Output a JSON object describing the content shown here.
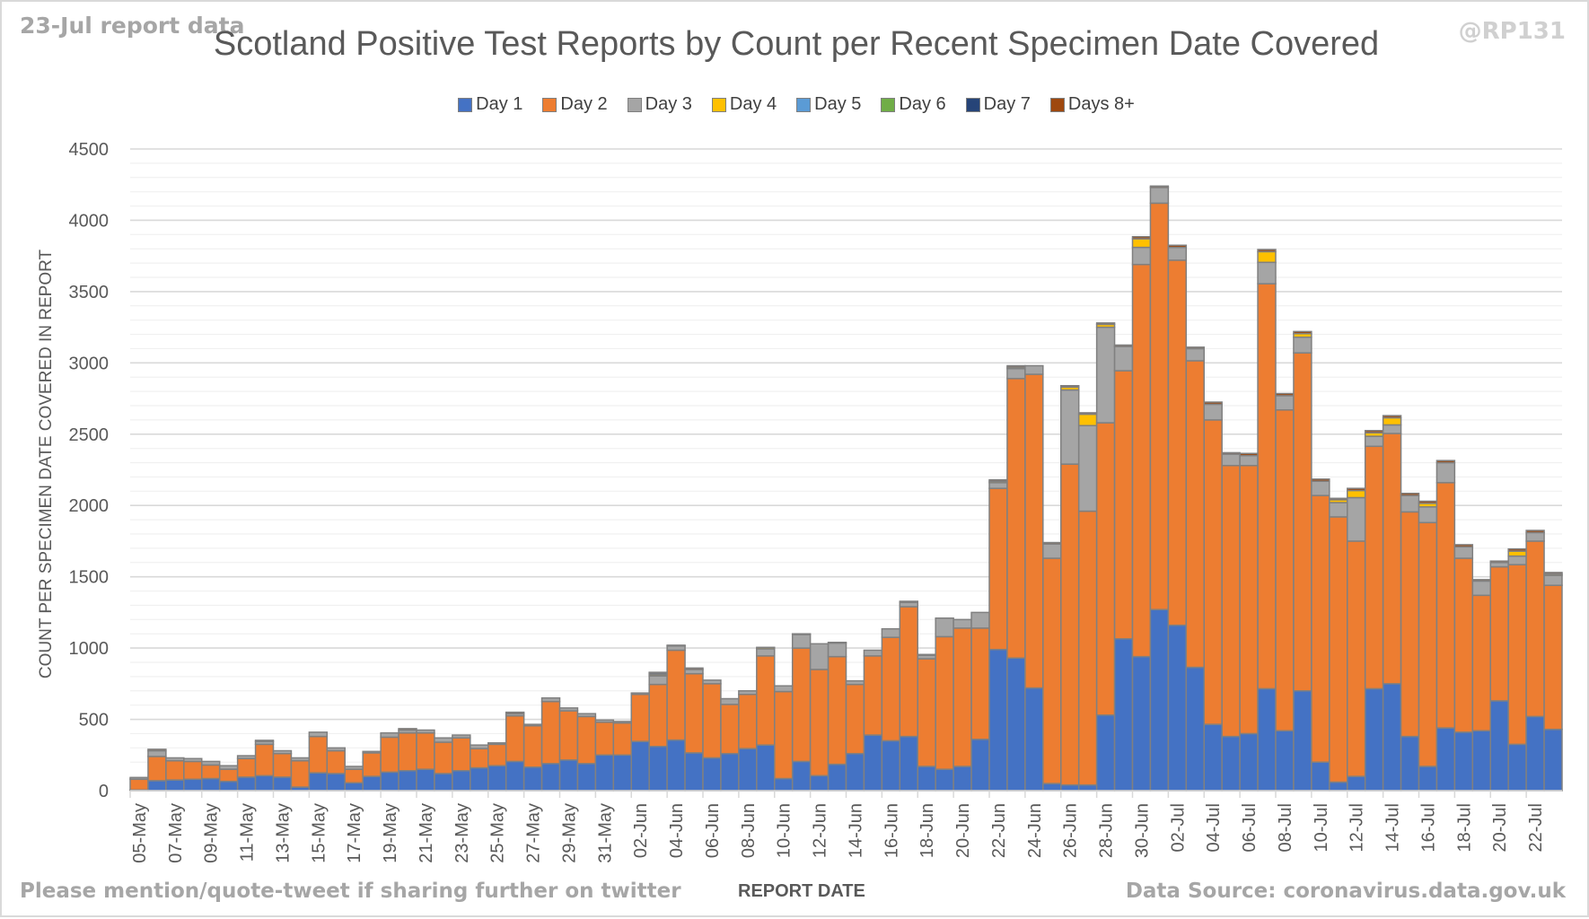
{
  "header": {
    "report_note": "23-Jul report data",
    "handle": "@RP131"
  },
  "footer": {
    "share_note": "Please mention/quote-tweet if sharing further on twitter",
    "source_note": "Data Source: coronavirus.data.gov.uk"
  },
  "chart_data": {
    "type": "bar",
    "stacked": true,
    "title": "Scotland Positive Test Reports by Count per Recent Specimen Date Covered",
    "xlabel": "REPORT DATE",
    "ylabel": "COUNT PER SPECIMEN DATE COVERED IN REPORT",
    "ylim": [
      0,
      4500
    ],
    "yticks": [
      "0",
      "500",
      "1000",
      "1500",
      "2000",
      "2500",
      "3000",
      "3500",
      "4000",
      "4500"
    ],
    "grid": true,
    "legend_position": "top-center",
    "categories": [
      "05-May",
      "06-May",
      "07-May",
      "08-May",
      "09-May",
      "10-May",
      "11-May",
      "12-May",
      "13-May",
      "14-May",
      "15-May",
      "16-May",
      "17-May",
      "18-May",
      "19-May",
      "20-May",
      "21-May",
      "22-May",
      "23-May",
      "24-May",
      "25-May",
      "26-May",
      "27-May",
      "28-May",
      "29-May",
      "30-May",
      "31-May",
      "01-Jun",
      "02-Jun",
      "03-Jun",
      "04-Jun",
      "05-Jun",
      "06-Jun",
      "07-Jun",
      "08-Jun",
      "09-Jun",
      "10-Jun",
      "11-Jun",
      "12-Jun",
      "13-Jun",
      "14-Jun",
      "15-Jun",
      "16-Jun",
      "17-Jun",
      "18-Jun",
      "19-Jun",
      "20-Jun",
      "21-Jun",
      "22-Jun",
      "23-Jun",
      "24-Jun",
      "25-Jun",
      "26-Jun",
      "27-Jun",
      "28-Jun",
      "29-Jun",
      "30-Jun",
      "01-Jul",
      "02-Jul",
      "03-Jul",
      "04-Jul",
      "05-Jul",
      "06-Jul",
      "07-Jul",
      "08-Jul",
      "09-Jul",
      "10-Jul",
      "11-Jul",
      "12-Jul",
      "13-Jul",
      "14-Jul",
      "15-Jul",
      "16-Jul",
      "17-Jul",
      "18-Jul",
      "19-Jul",
      "20-Jul",
      "21-Jul",
      "22-Jul",
      "23-Jul"
    ],
    "x_tick_labels_every": 2,
    "series": [
      {
        "name": "Day 1",
        "color": "#4472c4",
        "values": [
          5,
          70,
          75,
          80,
          85,
          65,
          95,
          105,
          95,
          25,
          125,
          120,
          55,
          100,
          130,
          140,
          150,
          120,
          140,
          160,
          175,
          205,
          165,
          190,
          215,
          190,
          250,
          250,
          345,
          310,
          355,
          265,
          230,
          260,
          295,
          320,
          85,
          205,
          105,
          185,
          260,
          390,
          350,
          380,
          170,
          150,
          170,
          360,
          990,
          930,
          720,
          50,
          40,
          40,
          530,
          1065,
          940,
          1270,
          1160,
          865,
          465,
          380,
          400,
          715,
          420,
          700,
          200,
          60,
          100,
          715,
          750,
          380,
          170,
          440,
          410,
          420,
          630,
          325,
          520,
          430
        ]
      },
      {
        "name": "Day 2",
        "color": "#ed7d31",
        "values": [
          75,
          170,
          135,
          125,
          95,
          85,
          130,
          220,
          165,
          185,
          255,
          160,
          95,
          165,
          245,
          265,
          255,
          220,
          230,
          135,
          150,
          320,
          290,
          435,
          345,
          330,
          230,
          225,
          330,
          435,
          630,
          555,
          520,
          345,
          380,
          625,
          610,
          795,
          745,
          755,
          485,
          555,
          725,
          910,
          755,
          930,
          970,
          780,
          1130,
          1960,
          2200,
          1580,
          2250,
          1920,
          2050,
          1880,
          2750,
          2850,
          2560,
          2150,
          2135,
          1900,
          1880,
          2840,
          2250,
          2370,
          1870,
          1860,
          1650,
          1700,
          1755,
          1575,
          1710,
          1720,
          1220,
          950,
          940,
          1260,
          1230,
          1010
        ]
      },
      {
        "name": "Day 3",
        "color": "#a5a5a5",
        "values": [
          12,
          40,
          20,
          20,
          25,
          25,
          20,
          20,
          20,
          20,
          30,
          20,
          20,
          10,
          30,
          20,
          20,
          30,
          20,
          25,
          10,
          15,
          10,
          25,
          20,
          20,
          15,
          10,
          10,
          60,
          30,
          30,
          25,
          40,
          25,
          50,
          40,
          95,
          180,
          95,
          25,
          40,
          60,
          30,
          25,
          130,
          60,
          110,
          40,
          70,
          60,
          100,
          520,
          600,
          670,
          170,
          120,
          110,
          90,
          85,
          110,
          80,
          70,
          150,
          100,
          110,
          100,
          100,
          305,
          70,
          60,
          115,
          110,
          140,
          80,
          100,
          30,
          60,
          60,
          70
        ]
      },
      {
        "name": "Day 4",
        "color": "#ffc000",
        "values": [
          0,
          0,
          0,
          0,
          0,
          0,
          0,
          0,
          0,
          0,
          0,
          0,
          0,
          0,
          0,
          0,
          0,
          0,
          0,
          0,
          0,
          0,
          0,
          0,
          0,
          0,
          0,
          0,
          0,
          10,
          0,
          0,
          0,
          0,
          0,
          10,
          0,
          0,
          0,
          0,
          0,
          0,
          0,
          0,
          0,
          0,
          0,
          0,
          10,
          10,
          0,
          0,
          20,
          80,
          20,
          0,
          60,
          0,
          0,
          0,
          0,
          0,
          0,
          75,
          0,
          25,
          0,
          20,
          50,
          25,
          50,
          0,
          25,
          0,
          0,
          0,
          0,
          35,
          0,
          10
        ]
      },
      {
        "name": "Day 5",
        "color": "#5b9bd5",
        "values": [
          0,
          0,
          0,
          0,
          0,
          0,
          0,
          0,
          0,
          0,
          0,
          0,
          0,
          0,
          0,
          0,
          0,
          0,
          0,
          0,
          0,
          0,
          0,
          0,
          0,
          0,
          0,
          0,
          0,
          0,
          0,
          0,
          0,
          0,
          0,
          0,
          0,
          0,
          0,
          0,
          0,
          0,
          0,
          0,
          0,
          0,
          0,
          0,
          0,
          0,
          0,
          0,
          0,
          0,
          0,
          0,
          0,
          0,
          0,
          0,
          0,
          0,
          0,
          0,
          0,
          0,
          0,
          0,
          0,
          0,
          0,
          0,
          0,
          0,
          0,
          0,
          0,
          0,
          0,
          0
        ]
      },
      {
        "name": "Day 6",
        "color": "#70ad47",
        "values": [
          0,
          0,
          0,
          0,
          0,
          0,
          0,
          0,
          0,
          0,
          0,
          0,
          0,
          0,
          0,
          0,
          0,
          0,
          0,
          0,
          0,
          0,
          0,
          0,
          0,
          0,
          0,
          0,
          0,
          0,
          0,
          0,
          0,
          0,
          0,
          0,
          0,
          0,
          0,
          0,
          0,
          0,
          0,
          0,
          0,
          0,
          0,
          0,
          0,
          0,
          0,
          0,
          0,
          0,
          0,
          0,
          0,
          0,
          0,
          0,
          0,
          0,
          0,
          0,
          0,
          0,
          0,
          0,
          0,
          0,
          0,
          0,
          0,
          0,
          0,
          0,
          0,
          0,
          0,
          0
        ]
      },
      {
        "name": "Day 7",
        "color": "#264478",
        "values": [
          0,
          0,
          0,
          0,
          0,
          0,
          0,
          0,
          0,
          0,
          0,
          0,
          0,
          0,
          0,
          0,
          0,
          0,
          0,
          0,
          0,
          0,
          0,
          0,
          0,
          0,
          0,
          0,
          0,
          10,
          0,
          0,
          0,
          0,
          0,
          0,
          0,
          0,
          0,
          0,
          0,
          0,
          0,
          0,
          0,
          0,
          0,
          0,
          0,
          0,
          0,
          0,
          0,
          0,
          0,
          0,
          0,
          0,
          0,
          0,
          0,
          0,
          0,
          0,
          0,
          0,
          0,
          0,
          0,
          0,
          0,
          0,
          0,
          0,
          0,
          0,
          0,
          0,
          0,
          0
        ]
      },
      {
        "name": "Days 8+",
        "color": "#9e480e",
        "values": [
          0,
          10,
          0,
          0,
          0,
          0,
          0,
          8,
          0,
          0,
          0,
          0,
          0,
          0,
          0,
          10,
          0,
          0,
          0,
          0,
          0,
          10,
          0,
          0,
          0,
          0,
          0,
          0,
          0,
          5,
          5,
          10,
          0,
          0,
          0,
          0,
          0,
          5,
          0,
          5,
          0,
          0,
          0,
          8,
          5,
          0,
          0,
          0,
          10,
          10,
          0,
          10,
          10,
          10,
          10,
          10,
          15,
          10,
          15,
          10,
          15,
          10,
          15,
          15,
          15,
          15,
          15,
          10,
          15,
          15,
          15,
          15,
          15,
          15,
          15,
          10,
          10,
          15,
          15,
          10
        ]
      }
    ]
  }
}
